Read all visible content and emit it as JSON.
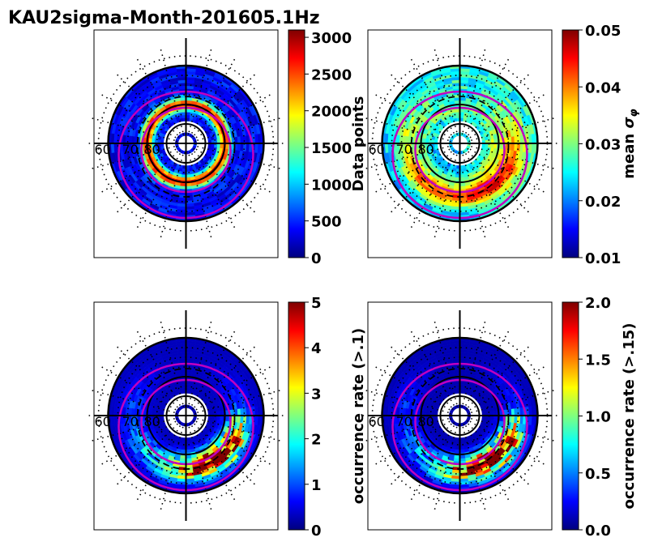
{
  "figure": {
    "title": "KAU2sigma-Month-201605.1Hz"
  },
  "chart_data": [
    {
      "type": "heatmap",
      "projection": "polar-mlat-mlt",
      "panel": "top-left",
      "colormap": "jet",
      "colorbar_label": "Data points",
      "colorbar_ticks": [
        "0",
        "500",
        "1000",
        "1500",
        "2000",
        "2500",
        "3000"
      ],
      "clim": [
        0,
        3100
      ],
      "lat_labels": [
        "60",
        "70",
        "80"
      ],
      "lat_range": [
        50,
        90
      ],
      "pattern": "ring"
    },
    {
      "type": "heatmap",
      "projection": "polar-mlat-mlt",
      "panel": "top-right",
      "colormap": "jet",
      "colorbar_label": "mean σ_φ",
      "colorbar_ticks": [
        "0.01",
        "0.02",
        "0.03",
        "0.04",
        "0.05"
      ],
      "clim": [
        0.01,
        0.05
      ],
      "lat_labels": [
        "60",
        "70",
        "80"
      ],
      "lat_range": [
        50,
        90
      ],
      "pattern": "sigma"
    },
    {
      "type": "heatmap",
      "projection": "polar-mlat-mlt",
      "panel": "bottom-left",
      "colormap": "jet",
      "colorbar_label": "occurrence rate (>.1)",
      "colorbar_ticks": [
        "0",
        "1",
        "2",
        "3",
        "4",
        "5"
      ],
      "clim": [
        0,
        5
      ],
      "lat_labels": [
        "60",
        "70",
        "80"
      ],
      "lat_range": [
        50,
        90
      ],
      "pattern": "occ1"
    },
    {
      "type": "heatmap",
      "projection": "polar-mlat-mlt",
      "panel": "bottom-right",
      "colormap": "jet",
      "colorbar_label": "occurrence rate (>.15)",
      "colorbar_ticks": [
        "0.0",
        "0.5",
        "1.0",
        "1.5",
        "2.0"
      ],
      "clim": [
        0,
        2
      ],
      "lat_labels": [
        "60",
        "70",
        "80"
      ],
      "lat_range": [
        50,
        90
      ],
      "pattern": "occ2"
    }
  ]
}
